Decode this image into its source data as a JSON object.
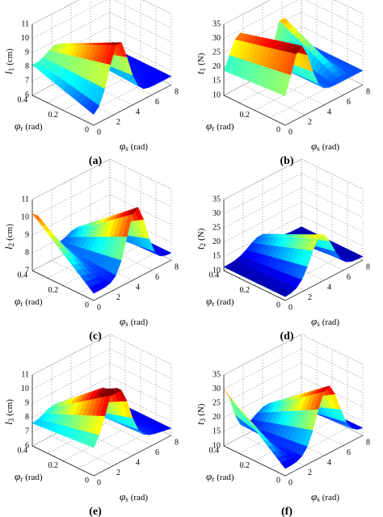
{
  "panels": [
    {
      "caption": "(a)",
      "z_label": {
        "symbol": "l",
        "sub": "1",
        "unit": "(cm)"
      },
      "zticks": [
        "6",
        "7",
        "8",
        "9",
        "10",
        "11"
      ],
      "r_label": {
        "symbol": "φ",
        "sub": "r",
        "unit": "(rad)"
      },
      "rticks": [
        "0.4",
        "0.2",
        "0"
      ],
      "s_label": {
        "symbol": "φ",
        "sub": "s",
        "unit": "(rad)"
      },
      "sticks": [
        "0",
        "2",
        "4",
        "6",
        "8"
      ]
    },
    {
      "caption": "(b)",
      "z_label": {
        "symbol": "t",
        "sub": "1",
        "unit": "(N)"
      },
      "zticks": [
        "10",
        "15",
        "20",
        "25",
        "30",
        "35"
      ],
      "r_label": {
        "symbol": "φ",
        "sub": "r",
        "unit": "(rad)"
      },
      "rticks": [
        "0.2",
        "0"
      ],
      "s_label": {
        "symbol": "φ",
        "sub": "s",
        "unit": "(rad)"
      },
      "sticks": [
        "0",
        "2",
        "4",
        "6",
        "8"
      ]
    },
    {
      "caption": "(c)",
      "z_label": {
        "symbol": "l",
        "sub": "2",
        "unit": "(cm)"
      },
      "zticks": [
        "7",
        "8",
        "9",
        "10",
        "11"
      ],
      "r_label": {
        "symbol": "φ",
        "sub": "r",
        "unit": "(rad)"
      },
      "rticks": [
        "0.4",
        "0.2",
        "0"
      ],
      "s_label": {
        "symbol": "φ",
        "sub": "s",
        "unit": "(rad)"
      },
      "sticks": [
        "0",
        "2",
        "4",
        "6",
        "8"
      ]
    },
    {
      "caption": "(d)",
      "z_label": {
        "symbol": "t",
        "sub": "2",
        "unit": "(N)"
      },
      "zticks": [
        "10",
        "15",
        "20",
        "25",
        "30",
        "35"
      ],
      "r_label": {
        "symbol": "φ",
        "sub": "r",
        "unit": "(rad)"
      },
      "rticks": [
        "0.4",
        "0.2",
        "0"
      ],
      "s_label": {
        "symbol": "φ",
        "sub": "s",
        "unit": "(rad)"
      },
      "sticks": [
        "0",
        "2",
        "4",
        "6",
        "8"
      ]
    },
    {
      "caption": "(e)",
      "z_label": {
        "symbol": "l",
        "sub": "3",
        "unit": "(cm)"
      },
      "zticks": [
        "6",
        "7",
        "8",
        "9",
        "10",
        "11"
      ],
      "r_label": {
        "symbol": "φ",
        "sub": "r",
        "unit": "(rad)"
      },
      "rticks": [
        "0.4",
        "0.2",
        "0"
      ],
      "s_label": {
        "symbol": "φ",
        "sub": "s",
        "unit": "(rad)"
      },
      "sticks": [
        "0",
        "2",
        "4",
        "6",
        "8"
      ]
    },
    {
      "caption": "(f)",
      "z_label": {
        "symbol": "t",
        "sub": "3",
        "unit": "(N)"
      },
      "zticks": [
        "10",
        "15",
        "20",
        "25",
        "30",
        "35"
      ],
      "r_label": {
        "symbol": "φ",
        "sub": "r",
        "unit": "(rad)"
      },
      "rticks": [
        "0.4",
        "0.2",
        "0"
      ],
      "s_label": {
        "symbol": "φ",
        "sub": "s",
        "unit": "(rad)"
      },
      "sticks": [
        "0",
        "2",
        "4",
        "6",
        "8"
      ]
    }
  ]
}
